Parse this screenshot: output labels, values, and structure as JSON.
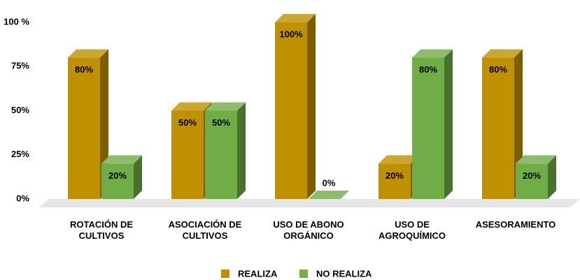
{
  "chart_data": {
    "type": "bar3d",
    "categories": [
      "ROTACIÓN DE CULTIVOS",
      "ASOCIACIÓN  DE CULTIVOS",
      "USO DE ABONO ORGÁNICO",
      "USO DE AGROQUÍMICO",
      "ASESORAMIENTO"
    ],
    "series": [
      {
        "name": "REALIZA",
        "color": "#bf9000",
        "values": [
          80,
          50,
          100,
          20,
          80
        ],
        "value_labels": [
          "80%",
          "50%",
          "100%",
          "20%",
          "80%"
        ]
      },
      {
        "name": "NO REALIZA",
        "color": "#70ad47",
        "values": [
          20,
          50,
          0,
          80,
          20
        ],
        "value_labels": [
          "20%",
          "50%",
          "0%",
          "80%",
          "20%"
        ]
      }
    ],
    "ylim": [
      0,
      100
    ],
    "yticks": [
      {
        "value": 0,
        "label": "0%"
      },
      {
        "value": 25,
        "label": "25%"
      },
      {
        "value": 50,
        "label": "50%"
      },
      {
        "value": 75,
        "label": "75%"
      },
      {
        "value": 100,
        "label": "100 %"
      }
    ],
    "legend": "bottom"
  }
}
